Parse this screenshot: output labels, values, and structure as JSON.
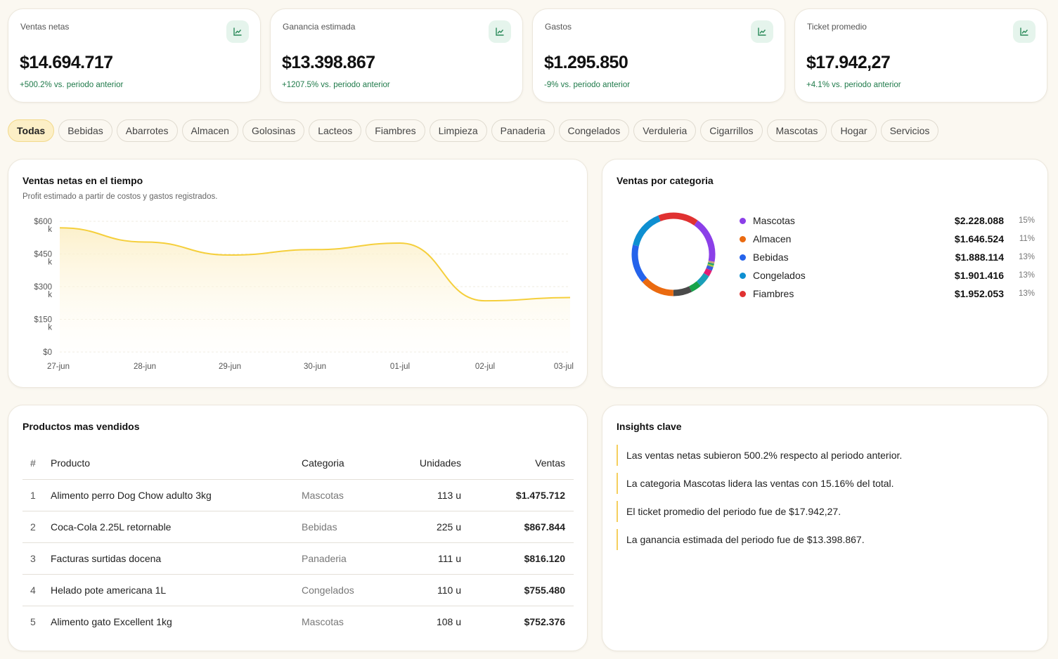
{
  "kpis": [
    {
      "label": "Ventas netas",
      "value": "$14.694.717",
      "delta": "+500.2% vs. periodo anterior",
      "icon": "trend-up-icon"
    },
    {
      "label": "Ganancia estimada",
      "value": "$13.398.867",
      "delta": "+1207.5% vs. periodo anterior",
      "icon": "trend-up-icon"
    },
    {
      "label": "Gastos",
      "value": "$1.295.850",
      "delta": "-9% vs. periodo anterior",
      "icon": "trend-up-icon"
    },
    {
      "label": "Ticket promedio",
      "value": "$17.942,27",
      "delta": "+4.1% vs. periodo anterior",
      "icon": "trend-up-icon"
    }
  ],
  "filters": {
    "active": "Todas",
    "items": [
      "Todas",
      "Bebidas",
      "Abarrotes",
      "Almacen",
      "Golosinas",
      "Lacteos",
      "Fiambres",
      "Limpieza",
      "Panaderia",
      "Congelados",
      "Verduleria",
      "Cigarrillos",
      "Mascotas",
      "Hogar",
      "Servicios"
    ]
  },
  "sales_chart": {
    "title": "Ventas netas en el tiempo",
    "subtitle": "Profit estimado a partir de costos y gastos registrados."
  },
  "category_chart": {
    "title": "Ventas por categoria"
  },
  "chart_data": [
    {
      "type": "area",
      "title": "Ventas netas en el tiempo",
      "x": [
        "27-jun",
        "28-jun",
        "29-jun",
        "30-jun",
        "01-jul",
        "02-jul",
        "03-jul"
      ],
      "values": [
        570000,
        505000,
        445000,
        470000,
        500000,
        235000,
        250000
      ],
      "ylim": [
        0,
        600000
      ],
      "yticks": [
        {
          "value": 600000,
          "label": "$600",
          "suffix": "k"
        },
        {
          "value": 450000,
          "label": "$450",
          "suffix": "k"
        },
        {
          "value": 300000,
          "label": "$300",
          "suffix": "k"
        },
        {
          "value": 150000,
          "label": "$150",
          "suffix": "k"
        },
        {
          "value": 0,
          "label": "$0",
          "suffix": ""
        }
      ],
      "color": "#f5cf3c",
      "grid": true
    },
    {
      "type": "pie",
      "title": "Ventas por categoria",
      "slices": [
        {
          "name": "Mascotas",
          "value": 2228088,
          "label": "$2.228.088",
          "pct": "15%",
          "color": "#8b3fe8",
          "legend": true
        },
        {
          "name": "Hogar",
          "value": 90000,
          "color": "#c9a27a",
          "legend": false
        },
        {
          "name": "Servicios",
          "value": 85000,
          "color": "#22a06b",
          "legend": false
        },
        {
          "name": "Cigarrillos",
          "value": 80000,
          "color": "#a3c93a",
          "legend": false
        },
        {
          "name": "Verduleria",
          "value": 180000,
          "color": "#3b5bdb",
          "legend": false
        },
        {
          "name": "Limpieza",
          "value": 300000,
          "color": "#e11d74",
          "legend": false
        },
        {
          "name": "Lacteos",
          "value": 600000,
          "color": "#1a9fb8",
          "legend": false
        },
        {
          "name": "Golosinas",
          "value": 500000,
          "color": "#16a34a",
          "legend": false
        },
        {
          "name": "Panaderia",
          "value": 900000,
          "color": "#4a4a4a",
          "legend": false
        },
        {
          "name": "Almacen",
          "value": 1646524,
          "label": "$1.646.524",
          "pct": "11%",
          "color": "#ea6a10",
          "legend": true
        },
        {
          "name": "Bebidas",
          "value": 1888114,
          "label": "$1.888.114",
          "pct": "13%",
          "color": "#2563eb",
          "legend": true
        },
        {
          "name": "Congelados",
          "value": 1901416,
          "label": "$1.901.416",
          "pct": "13%",
          "color": "#0e8fd1",
          "legend": true
        },
        {
          "name": "Fiambres",
          "value": 1952053,
          "label": "$1.952.053",
          "pct": "13%",
          "color": "#e03131",
          "legend": true
        }
      ]
    }
  ],
  "top_products": {
    "title": "Productos mas vendidos",
    "headers": {
      "rank": "#",
      "product": "Producto",
      "category": "Categoria",
      "units": "Unidades",
      "sales": "Ventas"
    },
    "rows": [
      {
        "rank": "1",
        "product": "Alimento perro Dog Chow adulto 3kg",
        "category": "Mascotas",
        "units": "113 u",
        "sales": "$1.475.712"
      },
      {
        "rank": "2",
        "product": "Coca-Cola 2.25L retornable",
        "category": "Bebidas",
        "units": "225 u",
        "sales": "$867.844"
      },
      {
        "rank": "3",
        "product": "Facturas surtidas docena",
        "category": "Panaderia",
        "units": "111 u",
        "sales": "$816.120"
      },
      {
        "rank": "4",
        "product": "Helado pote americana 1L",
        "category": "Congelados",
        "units": "110 u",
        "sales": "$755.480"
      },
      {
        "rank": "5",
        "product": "Alimento gato Excellent 1kg",
        "category": "Mascotas",
        "units": "108 u",
        "sales": "$752.376"
      }
    ]
  },
  "insights": {
    "title": "Insights clave",
    "items": [
      "Las ventas netas subieron 500.2% respecto al periodo anterior.",
      "La categoria Mascotas lidera las ventas con 15.16% del total.",
      "El ticket promedio del periodo fue de $17.942,27.",
      "La ganancia estimada del periodo fue de $13.398.867."
    ]
  }
}
